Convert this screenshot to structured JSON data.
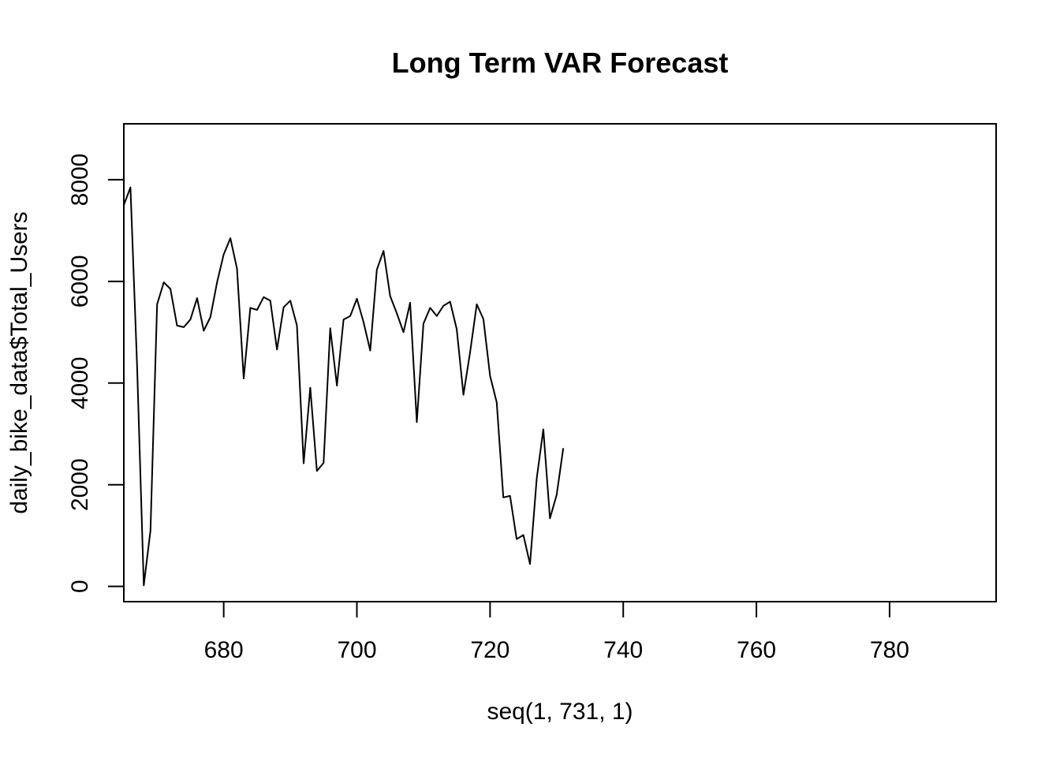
{
  "chart_data": {
    "type": "line",
    "title": "Long Term VAR Forecast",
    "xlabel": "seq(1, 731, 1)",
    "ylabel": "daily_bike_data$Total_Users",
    "xlim": [
      665,
      796
    ],
    "ylim": [
      -300,
      9100
    ],
    "xticks": [
      680,
      700,
      720,
      740,
      760,
      780
    ],
    "xtick_labels": [
      "680",
      "700",
      "720",
      "740",
      "760",
      "780"
    ],
    "yticks": [
      0,
      2000,
      4000,
      6000,
      8000
    ],
    "ytick_labels": [
      "0",
      "2000",
      "4000",
      "6000",
      "8000"
    ],
    "grid": false,
    "line_color": "#000000",
    "series": [
      {
        "x": [
          665,
          666,
          667,
          668,
          669,
          670,
          671,
          672,
          673,
          674,
          675,
          676,
          677,
          678,
          679,
          680,
          681,
          682,
          683,
          684,
          685,
          686,
          687,
          688,
          689,
          690,
          691,
          692,
          693,
          694,
          695,
          696,
          697,
          698,
          699,
          700,
          701,
          702,
          703,
          704,
          705,
          706,
          707,
          708,
          709,
          710,
          711,
          712,
          713,
          714,
          715,
          716,
          717,
          718,
          719,
          720,
          721,
          722,
          723,
          724,
          725,
          726,
          727,
          728,
          729,
          730,
          731
        ],
        "y": [
          7500,
          7850,
          4300,
          20,
          1100,
          5550,
          5980,
          5850,
          5130,
          5100,
          5250,
          5670,
          5030,
          5300,
          5980,
          6530,
          6850,
          6250,
          4090,
          5480,
          5440,
          5690,
          5620,
          4660,
          5490,
          5620,
          5130,
          2420,
          3910,
          2270,
          2430,
          5080,
          3950,
          5250,
          5320,
          5660,
          5200,
          4640,
          6230,
          6600,
          5710,
          5370,
          5000,
          5580,
          3230,
          5170,
          5480,
          5320,
          5520,
          5600,
          5060,
          3770,
          4600,
          5550,
          5260,
          4140,
          3620,
          1750,
          1780,
          930,
          1010,
          440,
          2120,
          3090,
          1340,
          1800,
          2720
        ]
      }
    ]
  }
}
